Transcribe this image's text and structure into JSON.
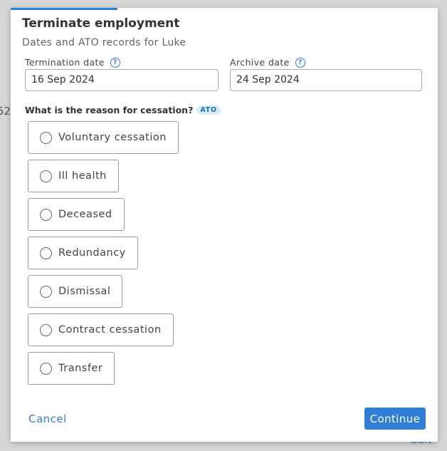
{
  "background": {
    "fragments": [
      "52,",
      "Edit"
    ]
  },
  "dialog": {
    "title": "Terminate employment",
    "subtitle": "Dates and ATO records for Luke",
    "fields": [
      {
        "label": "Termination date",
        "value": "16 Sep 2024"
      },
      {
        "label": "Archive date",
        "value": "24 Sep 2024"
      }
    ],
    "question": "What is the reason for cessation?",
    "badge": "ATO",
    "options": [
      "Voluntary cessation",
      "Ill health",
      "Deceased",
      "Redundancy",
      "Dismissal",
      "Contract cessation",
      "Transfer"
    ],
    "cancel": "Cancel",
    "continue": "Continue"
  }
}
